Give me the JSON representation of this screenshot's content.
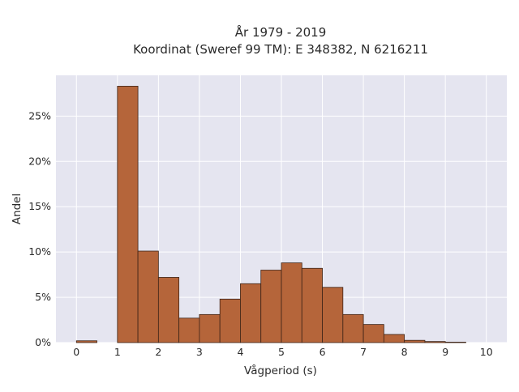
{
  "chart_data": {
    "type": "bar",
    "title": "År 1979 - 2019",
    "subtitle": "Koordinat (Sweref 99 TM): E 348382, N 6216211",
    "xlabel": "Vågperiod (s)",
    "ylabel": "Andel",
    "bin_width": 0.5,
    "bins": [
      {
        "x0": 0.0,
        "x1": 0.5,
        "value": 0.2
      },
      {
        "x0": 0.5,
        "x1": 1.0,
        "value": 0.0
      },
      {
        "x0": 1.0,
        "x1": 1.5,
        "value": 28.3
      },
      {
        "x0": 1.5,
        "x1": 2.0,
        "value": 10.1
      },
      {
        "x0": 2.0,
        "x1": 2.5,
        "value": 7.2
      },
      {
        "x0": 2.5,
        "x1": 3.0,
        "value": 2.7
      },
      {
        "x0": 3.0,
        "x1": 3.5,
        "value": 3.1
      },
      {
        "x0": 3.5,
        "x1": 4.0,
        "value": 4.8
      },
      {
        "x0": 4.0,
        "x1": 4.5,
        "value": 6.5
      },
      {
        "x0": 4.5,
        "x1": 5.0,
        "value": 8.0
      },
      {
        "x0": 5.0,
        "x1": 5.5,
        "value": 8.8
      },
      {
        "x0": 5.5,
        "x1": 6.0,
        "value": 8.2
      },
      {
        "x0": 6.0,
        "x1": 6.5,
        "value": 6.1
      },
      {
        "x0": 6.5,
        "x1": 7.0,
        "value": 3.1
      },
      {
        "x0": 7.0,
        "x1": 7.5,
        "value": 2.0
      },
      {
        "x0": 7.5,
        "x1": 8.0,
        "value": 0.9
      },
      {
        "x0": 8.0,
        "x1": 8.5,
        "value": 0.25
      },
      {
        "x0": 8.5,
        "x1": 9.0,
        "value": 0.12
      },
      {
        "x0": 9.0,
        "x1": 9.5,
        "value": 0.05
      }
    ],
    "xlim": [
      -0.5,
      10.5
    ],
    "ylim": [
      0,
      29.5
    ],
    "x_ticks": [
      0,
      1,
      2,
      3,
      4,
      5,
      6,
      7,
      8,
      9,
      10
    ],
    "x_tick_labels": [
      "0",
      "1",
      "2",
      "3",
      "4",
      "5",
      "6",
      "7",
      "8",
      "9",
      "10"
    ],
    "y_ticks": [
      0,
      5,
      10,
      15,
      20,
      25
    ],
    "y_tick_labels": [
      "0%",
      "5%",
      "10%",
      "15%",
      "20%",
      "25%"
    ],
    "grid": true,
    "legend": "none",
    "colors": {
      "bar_fill": "#b5653a",
      "bar_stroke": "#3d2417",
      "plot_background": "#e5e5f0",
      "grid": "#ffffff"
    }
  }
}
